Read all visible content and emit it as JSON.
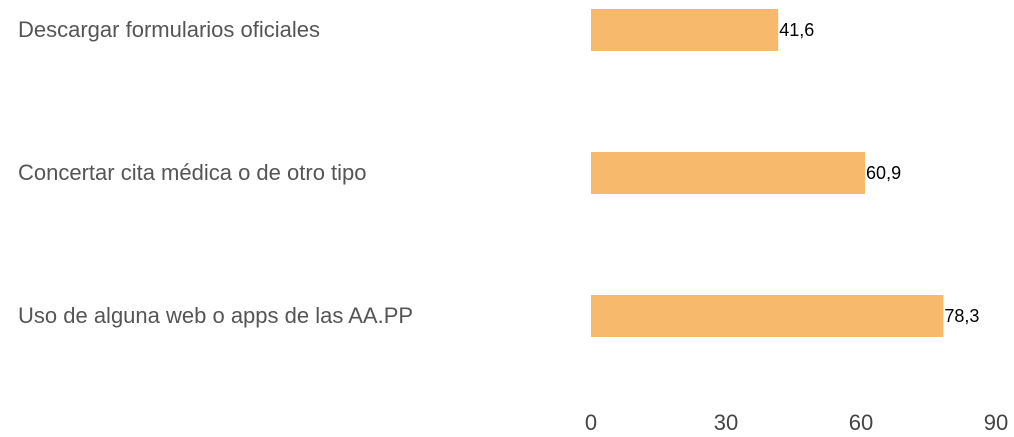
{
  "chart_data": {
    "type": "barh",
    "categories": [
      "Descargar formularios oficiales",
      "Concertar cita médica o de otro tipo",
      "Uso de alguna web o apps de las AA.PP"
    ],
    "values": [
      41.6,
      60.9,
      78.3
    ],
    "value_labels": [
      "41,6",
      "60,9",
      "78,3"
    ],
    "color": "#f7b96b",
    "xlim": [
      0,
      90
    ],
    "xticks": [
      0,
      30,
      60,
      90
    ],
    "grid": false
  }
}
